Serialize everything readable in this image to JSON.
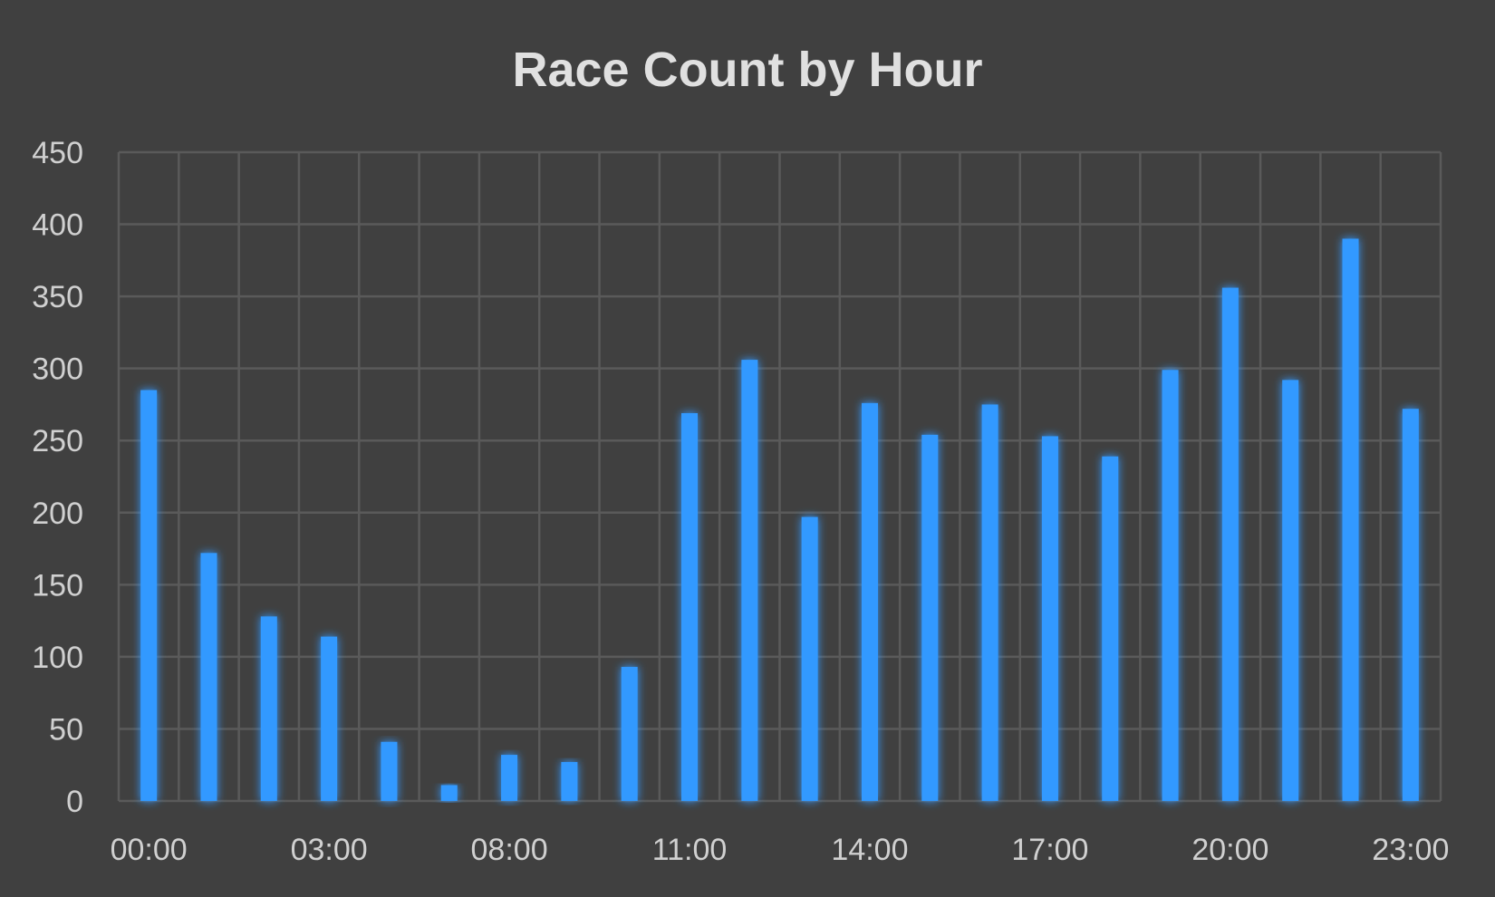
{
  "chart_data": {
    "type": "bar",
    "title": "Race Count by Hour",
    "xlabel": "",
    "ylabel": "",
    "categories": [
      "00:00",
      "01:00",
      "02:00",
      "03:00",
      "04:00",
      "07:00",
      "08:00",
      "09:00",
      "10:00",
      "11:00",
      "12:00",
      "13:00",
      "14:00",
      "15:00",
      "16:00",
      "17:00",
      "18:00",
      "19:00",
      "20:00",
      "21:00",
      "22:00",
      "23:00"
    ],
    "x_tick_labels_shown": [
      "00:00",
      "03:00",
      "08:00",
      "11:00",
      "14:00",
      "17:00",
      "20:00",
      "23:00"
    ],
    "values": [
      285,
      172,
      128,
      114,
      41,
      11,
      32,
      27,
      93,
      269,
      306,
      197,
      276,
      254,
      275,
      253,
      239,
      299,
      356,
      292,
      390,
      272
    ],
    "ylim": [
      0,
      450
    ],
    "yticks": [
      0,
      50,
      100,
      150,
      200,
      250,
      300,
      350,
      400,
      450
    ],
    "grid": true,
    "legend": "none",
    "bar_color": "#3399FF",
    "glow_color": "#5AAEFF"
  },
  "colors": {
    "background": "#404040",
    "grid": "#5A5A5A",
    "text": "#D0D0D0",
    "title": "#E0E0E0"
  }
}
